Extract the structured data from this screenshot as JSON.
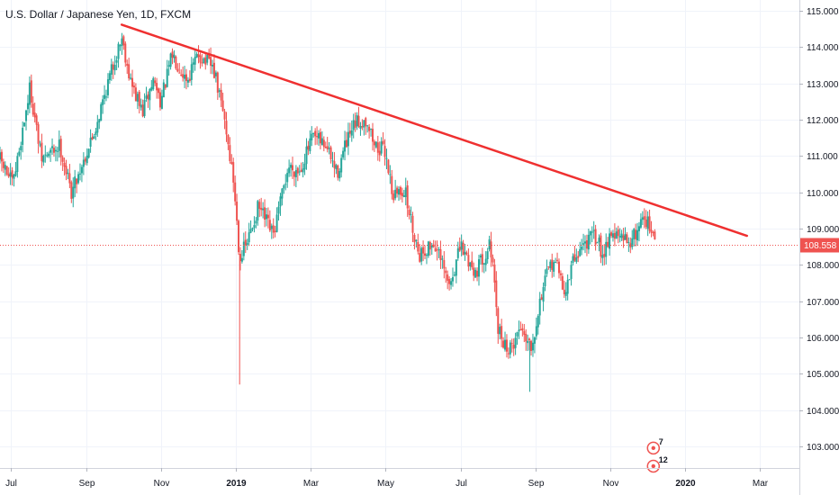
{
  "header": {
    "symbol_title": "U.S. Dollar / Japanese Yen, 1D, FXCM"
  },
  "chart_data": {
    "type": "candlestick",
    "title": "U.S. Dollar / Japanese Yen, 1D, FXCM",
    "ylim": [
      102.4,
      115.3
    ],
    "x_range_months": [
      -0.3,
      21.05
    ],
    "y_ticks": [
      "103.000",
      "104.000",
      "105.000",
      "106.000",
      "107.000",
      "108.000",
      "109.000",
      "110.000",
      "111.000",
      "112.000",
      "113.000",
      "114.000",
      "115.000"
    ],
    "x_ticks": [
      {
        "label": "Jul",
        "m": 0,
        "bold": false
      },
      {
        "label": "Sep",
        "m": 2,
        "bold": false
      },
      {
        "label": "Nov",
        "m": 4,
        "bold": false
      },
      {
        "label": "2019",
        "m": 6,
        "bold": true
      },
      {
        "label": "Mar",
        "m": 8,
        "bold": false
      },
      {
        "label": "May",
        "m": 10,
        "bold": false
      },
      {
        "label": "Jul",
        "m": 12,
        "bold": false
      },
      {
        "label": "Sep",
        "m": 14,
        "bold": false
      },
      {
        "label": "Nov",
        "m": 16,
        "bold": false
      },
      {
        "label": "2020",
        "m": 18,
        "bold": true
      },
      {
        "label": "Mar",
        "m": 20,
        "bold": false
      }
    ],
    "last_price": 108.558,
    "last_price_label": "108.558",
    "trendline": {
      "start": {
        "m": 2.95,
        "price": 114.62
      },
      "end": {
        "m": 19.65,
        "price": 108.8
      },
      "color": "#ef3030"
    },
    "up_color": "#26a69a",
    "down_color": "#ef5350",
    "anchors": [
      {
        "m": -0.3,
        "p": 110.9
      },
      {
        "m": 0.05,
        "p": 110.2
      },
      {
        "m": 0.5,
        "p": 112.9
      },
      {
        "m": 0.8,
        "p": 110.9
      },
      {
        "m": 1.3,
        "p": 111.3
      },
      {
        "m": 1.6,
        "p": 110.0
      },
      {
        "m": 2.2,
        "p": 111.6
      },
      {
        "m": 2.55,
        "p": 112.9
      },
      {
        "m": 2.95,
        "p": 114.3
      },
      {
        "m": 3.2,
        "p": 113.0
      },
      {
        "m": 3.5,
        "p": 112.2
      },
      {
        "m": 3.8,
        "p": 113.1
      },
      {
        "m": 4.0,
        "p": 112.5
      },
      {
        "m": 4.3,
        "p": 113.8
      },
      {
        "m": 4.7,
        "p": 113.1
      },
      {
        "m": 5.0,
        "p": 113.8
      },
      {
        "m": 5.4,
        "p": 113.4
      },
      {
        "m": 5.7,
        "p": 112.0
      },
      {
        "m": 5.95,
        "p": 110.2
      },
      {
        "m": 6.1,
        "p": 108.2
      },
      {
        "m": 6.3,
        "p": 108.6
      },
      {
        "m": 6.6,
        "p": 109.6
      },
      {
        "m": 7.0,
        "p": 108.8
      },
      {
        "m": 7.4,
        "p": 110.7
      },
      {
        "m": 7.7,
        "p": 110.6
      },
      {
        "m": 8.05,
        "p": 111.5
      },
      {
        "m": 8.4,
        "p": 111.3
      },
      {
        "m": 8.7,
        "p": 110.5
      },
      {
        "m": 8.9,
        "p": 111.2
      },
      {
        "m": 9.2,
        "p": 111.9
      },
      {
        "m": 9.5,
        "p": 112.0
      },
      {
        "m": 9.7,
        "p": 111.3
      },
      {
        "m": 10.0,
        "p": 111.1
      },
      {
        "m": 10.2,
        "p": 109.9
      },
      {
        "m": 10.5,
        "p": 110.1
      },
      {
        "m": 10.7,
        "p": 109.1
      },
      {
        "m": 10.9,
        "p": 108.3
      },
      {
        "m": 11.3,
        "p": 108.6
      },
      {
        "m": 11.7,
        "p": 107.4
      },
      {
        "m": 12.0,
        "p": 108.5
      },
      {
        "m": 12.4,
        "p": 107.8
      },
      {
        "m": 12.8,
        "p": 108.6
      },
      {
        "m": 13.0,
        "p": 106.2
      },
      {
        "m": 13.3,
        "p": 105.6
      },
      {
        "m": 13.6,
        "p": 106.3
      },
      {
        "m": 13.9,
        "p": 105.8
      },
      {
        "m": 14.2,
        "p": 107.4
      },
      {
        "m": 14.5,
        "p": 108.2
      },
      {
        "m": 14.8,
        "p": 107.2
      },
      {
        "m": 15.0,
        "p": 108.1
      },
      {
        "m": 15.3,
        "p": 108.6
      },
      {
        "m": 15.6,
        "p": 108.8
      },
      {
        "m": 15.8,
        "p": 108.3
      },
      {
        "m": 16.0,
        "p": 108.9
      },
      {
        "m": 16.3,
        "p": 108.7
      },
      {
        "m": 16.6,
        "p": 108.7
      },
      {
        "m": 16.9,
        "p": 109.4
      },
      {
        "m": 17.2,
        "p": 108.6
      }
    ],
    "markers": [
      {
        "label": "7",
        "m": 17.15,
        "price": 102.95,
        "color": "#ef5350"
      },
      {
        "label": "12",
        "m": 17.15,
        "price": 102.45,
        "color": "#ef5350"
      }
    ]
  }
}
